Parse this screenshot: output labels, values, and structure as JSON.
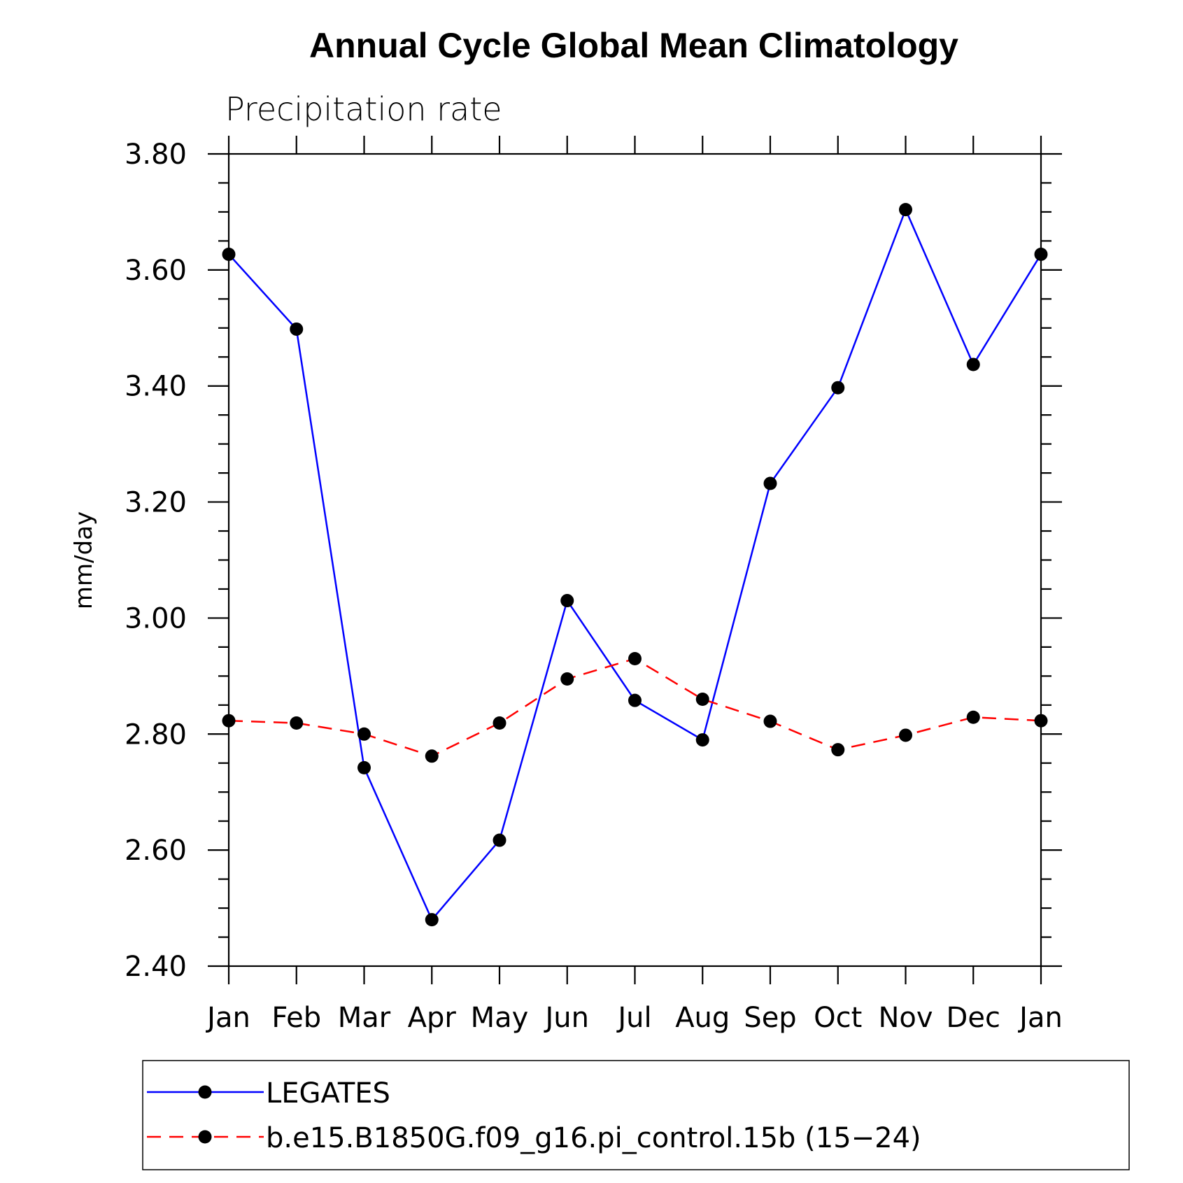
{
  "chart_data": {
    "type": "line",
    "title": "Annual Cycle Global Mean Climatology",
    "subtitle": "Precipitation rate",
    "xlabel": "",
    "ylabel": "mm/day",
    "categories": [
      "Jan",
      "Feb",
      "Mar",
      "Apr",
      "May",
      "Jun",
      "Jul",
      "Aug",
      "Sep",
      "Oct",
      "Nov",
      "Dec",
      "Jan"
    ],
    "ylim": [
      2.4,
      3.8
    ],
    "yticks": [
      "2.40",
      "2.60",
      "2.80",
      "3.00",
      "3.20",
      "3.40",
      "3.60",
      "3.80"
    ],
    "legend_position": "bottom",
    "series": [
      {
        "name": "LEGATES",
        "color": "#0000ff",
        "dash": "solid",
        "marker": "filled-circle",
        "values": [
          3.627,
          3.498,
          2.742,
          2.48,
          2.617,
          3.03,
          2.858,
          2.79,
          3.232,
          3.397,
          3.704,
          3.437,
          3.627
        ]
      },
      {
        "name": "b.e15.B1850G.f09_g16.pi_control.15b (15−24)",
        "color": "#ff0000",
        "dash": "dashed",
        "marker": "filled-circle",
        "values": [
          2.823,
          2.819,
          2.8,
          2.762,
          2.819,
          2.895,
          2.93,
          2.86,
          2.822,
          2.773,
          2.798,
          2.829,
          2.823
        ]
      }
    ]
  }
}
